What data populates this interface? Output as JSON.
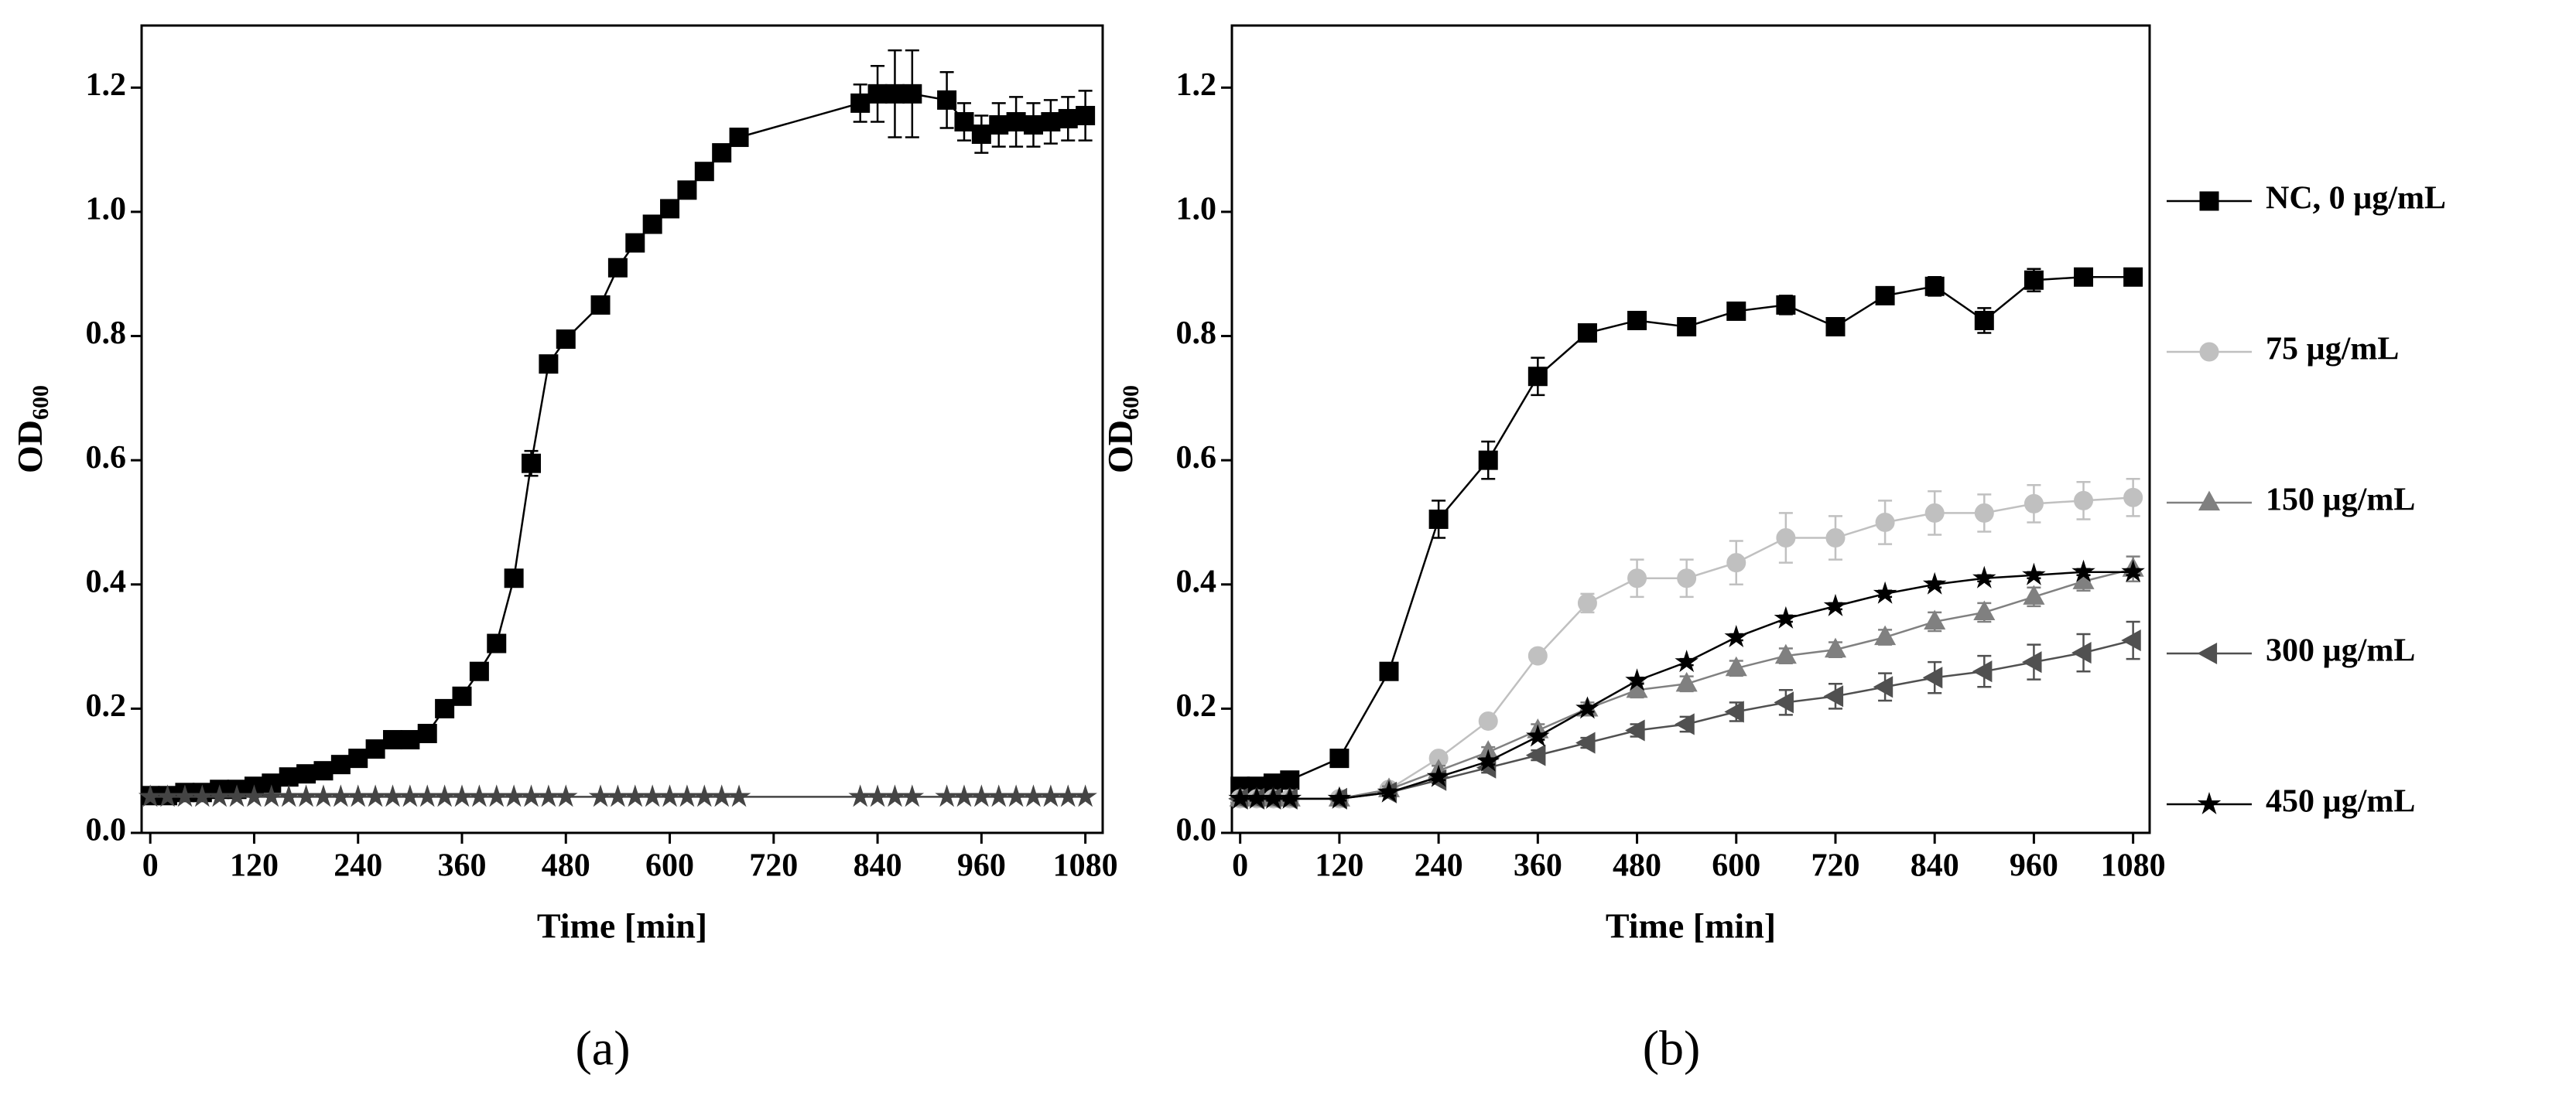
{
  "chart_data": [
    {
      "type": "line",
      "panel_label": "(a)",
      "xlabel": "Time [min]",
      "ylabel": {
        "main": "OD",
        "sub": "600"
      },
      "xlim": [
        -10,
        1100
      ],
      "ylim": [
        0,
        1.3
      ],
      "xticks": [
        0,
        120,
        240,
        360,
        480,
        600,
        720,
        840,
        960,
        1080
      ],
      "yticks": [
        {
          "value": 0,
          "label": "0.0"
        },
        0.2,
        0.4,
        0.6,
        0.8,
        {
          "value": 1,
          "label": "1.0"
        },
        1.2
      ],
      "x": [
        0,
        20,
        40,
        60,
        80,
        100,
        120,
        140,
        160,
        180,
        200,
        220,
        240,
        260,
        280,
        300,
        320,
        340,
        360,
        380,
        400,
        420,
        440,
        460,
        480,
        520,
        540,
        560,
        580,
        600,
        620,
        640,
        660,
        680,
        820,
        840,
        860,
        880,
        920,
        940,
        960,
        980,
        1000,
        1020,
        1040,
        1060,
        1080
      ],
      "series": [
        {
          "color": "#000000",
          "marker": "square",
          "values": [
            0.06,
            0.06,
            0.065,
            0.065,
            0.07,
            0.07,
            0.075,
            0.08,
            0.09,
            0.095,
            0.1,
            0.11,
            0.12,
            0.135,
            0.15,
            0.15,
            0.16,
            0.2,
            0.22,
            0.26,
            0.305,
            0.41,
            0.595,
            0.755,
            0.795,
            0.85,
            0.91,
            0.95,
            0.98,
            1.005,
            1.035,
            1.065,
            1.095,
            1.12,
            1.175,
            1.19,
            1.19,
            1.19,
            1.18,
            1.145,
            1.125,
            1.14,
            1.145,
            1.14,
            1.145,
            1.15,
            1.155
          ],
          "errors": [
            0.005,
            0.005,
            0.005,
            0.005,
            0.005,
            0.005,
            0.005,
            0.005,
            0.005,
            0.005,
            0.005,
            0.005,
            0.005,
            0.005,
            0.005,
            0.005,
            0.005,
            0.005,
            0.005,
            0.005,
            0.005,
            0.005,
            0.02,
            0.005,
            0.005,
            0.005,
            0.005,
            0.005,
            0.005,
            0.005,
            0.005,
            0.005,
            0.005,
            0.005,
            0.03,
            0.045,
            0.07,
            0.07,
            0.045,
            0.03,
            0.03,
            0.035,
            0.04,
            0.035,
            0.035,
            0.035,
            0.04
          ]
        },
        {
          "color": "#444444",
          "marker": "star",
          "values": [
            0.058,
            0.058,
            0.058,
            0.058,
            0.058,
            0.058,
            0.058,
            0.058,
            0.058,
            0.058,
            0.058,
            0.058,
            0.058,
            0.058,
            0.058,
            0.058,
            0.058,
            0.058,
            0.058,
            0.058,
            0.058,
            0.058,
            0.058,
            0.058,
            0.058,
            0.058,
            0.058,
            0.058,
            0.058,
            0.058,
            0.058,
            0.058,
            0.058,
            0.058,
            0.058,
            0.058,
            0.058,
            0.058,
            0.058,
            0.058,
            0.058,
            0.058,
            0.058,
            0.058,
            0.058,
            0.058,
            0.058
          ]
        }
      ]
    },
    {
      "type": "line",
      "panel_label": "(b)",
      "xlabel": "Time [min]",
      "ylabel": {
        "main": "OD",
        "sub": "600"
      },
      "xlim": [
        -10,
        1100
      ],
      "ylim": [
        0,
        1.3
      ],
      "legend": "right",
      "xticks": [
        0,
        120,
        240,
        360,
        480,
        600,
        720,
        840,
        960,
        1080
      ],
      "yticks": [
        {
          "value": 0,
          "label": "0.0"
        },
        0.2,
        0.4,
        0.6,
        0.8,
        {
          "value": 1,
          "label": "1.0"
        },
        1.2
      ],
      "x": [
        0,
        20,
        40,
        60,
        120,
        180,
        240,
        300,
        360,
        420,
        480,
        540,
        600,
        660,
        720,
        780,
        840,
        900,
        960,
        1020,
        1080
      ],
      "series": [
        {
          "name": "NC, 0 µg/mL",
          "color": "#000000",
          "marker": "square",
          "values": [
            0.075,
            0.075,
            0.08,
            0.085,
            0.12,
            0.26,
            0.505,
            0.6,
            0.735,
            0.805,
            0.825,
            0.815,
            0.84,
            0.85,
            0.815,
            0.865,
            0.88,
            0.825,
            0.89,
            0.895,
            0.895
          ],
          "errors": [
            0.005,
            0.005,
            0.005,
            0.005,
            0.008,
            0.01,
            0.03,
            0.03,
            0.03,
            0.01,
            0.01,
            0.01,
            0.012,
            0.015,
            0.01,
            0.012,
            0.015,
            0.02,
            0.018,
            0.01,
            0.008
          ]
        },
        {
          "name": "75 µg/mL",
          "color": "#c0c0c0",
          "marker": "circle",
          "values": [
            0.055,
            0.055,
            0.055,
            0.055,
            0.055,
            0.07,
            0.12,
            0.18,
            0.285,
            0.37,
            0.41,
            0.41,
            0.435,
            0.475,
            0.475,
            0.5,
            0.515,
            0.515,
            0.53,
            0.535,
            0.54
          ],
          "errors": [
            0.003,
            0.003,
            0.003,
            0.003,
            0.003,
            0.005,
            0.008,
            0.008,
            0.01,
            0.015,
            0.03,
            0.03,
            0.035,
            0.04,
            0.035,
            0.035,
            0.035,
            0.03,
            0.03,
            0.03,
            0.03
          ]
        },
        {
          "name": "150 µg/mL",
          "color": "#808080",
          "marker": "triangle-up",
          "values": [
            0.055,
            0.055,
            0.055,
            0.055,
            0.055,
            0.07,
            0.1,
            0.13,
            0.165,
            0.2,
            0.23,
            0.24,
            0.265,
            0.285,
            0.295,
            0.315,
            0.34,
            0.355,
            0.38,
            0.405,
            0.425
          ],
          "errors": [
            0.003,
            0.003,
            0.003,
            0.003,
            0.003,
            0.005,
            0.008,
            0.008,
            0.01,
            0.01,
            0.012,
            0.012,
            0.012,
            0.012,
            0.012,
            0.012,
            0.015,
            0.015,
            0.015,
            0.015,
            0.02
          ]
        },
        {
          "name": "300 µg/mL",
          "color": "#505050",
          "marker": "triangle-left",
          "values": [
            0.055,
            0.055,
            0.055,
            0.055,
            0.055,
            0.065,
            0.085,
            0.105,
            0.125,
            0.145,
            0.165,
            0.175,
            0.195,
            0.21,
            0.22,
            0.235,
            0.25,
            0.26,
            0.275,
            0.29,
            0.31
          ],
          "errors": [
            0.003,
            0.003,
            0.003,
            0.003,
            0.003,
            0.005,
            0.005,
            0.008,
            0.008,
            0.008,
            0.01,
            0.012,
            0.015,
            0.02,
            0.02,
            0.022,
            0.025,
            0.025,
            0.028,
            0.03,
            0.03
          ]
        },
        {
          "name": "450 µg/mL",
          "color": "#000000",
          "marker": "star",
          "values": [
            0.055,
            0.055,
            0.055,
            0.055,
            0.055,
            0.065,
            0.09,
            0.115,
            0.155,
            0.2,
            0.245,
            0.275,
            0.315,
            0.345,
            0.365,
            0.385,
            0.4,
            0.41,
            0.415,
            0.42,
            0.42
          ],
          "errors": [
            0.003,
            0.003,
            0.003,
            0.003,
            0.003,
            0.005,
            0.005,
            0.005,
            0.005,
            0.005,
            0.005,
            0.005,
            0.005,
            0.005,
            0.005,
            0.005,
            0.005,
            0.005,
            0.005,
            0.005,
            0.005
          ]
        }
      ]
    }
  ]
}
